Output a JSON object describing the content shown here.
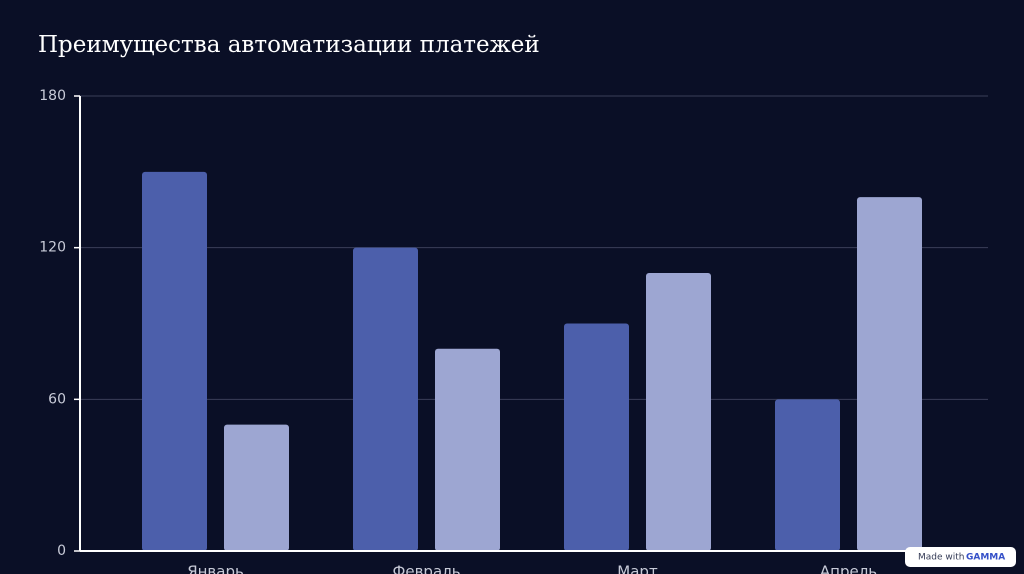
{
  "chart_data": {
    "type": "bar",
    "title": "Преимущества автоматизации платежей",
    "categories": [
      "Январь",
      "Февраль",
      "Март",
      "Апрель"
    ],
    "series": [
      {
        "color": "#4c5fab",
        "values": [
          150,
          120,
          90,
          60
        ]
      },
      {
        "color": "#9da6d2",
        "values": [
          50,
          80,
          110,
          140
        ]
      }
    ],
    "ylim": [
      0,
      180
    ],
    "yticks": [
      0,
      60,
      120,
      180
    ],
    "grid": true
  },
  "badge": {
    "text": "Made with",
    "brand": "GAMMA"
  }
}
